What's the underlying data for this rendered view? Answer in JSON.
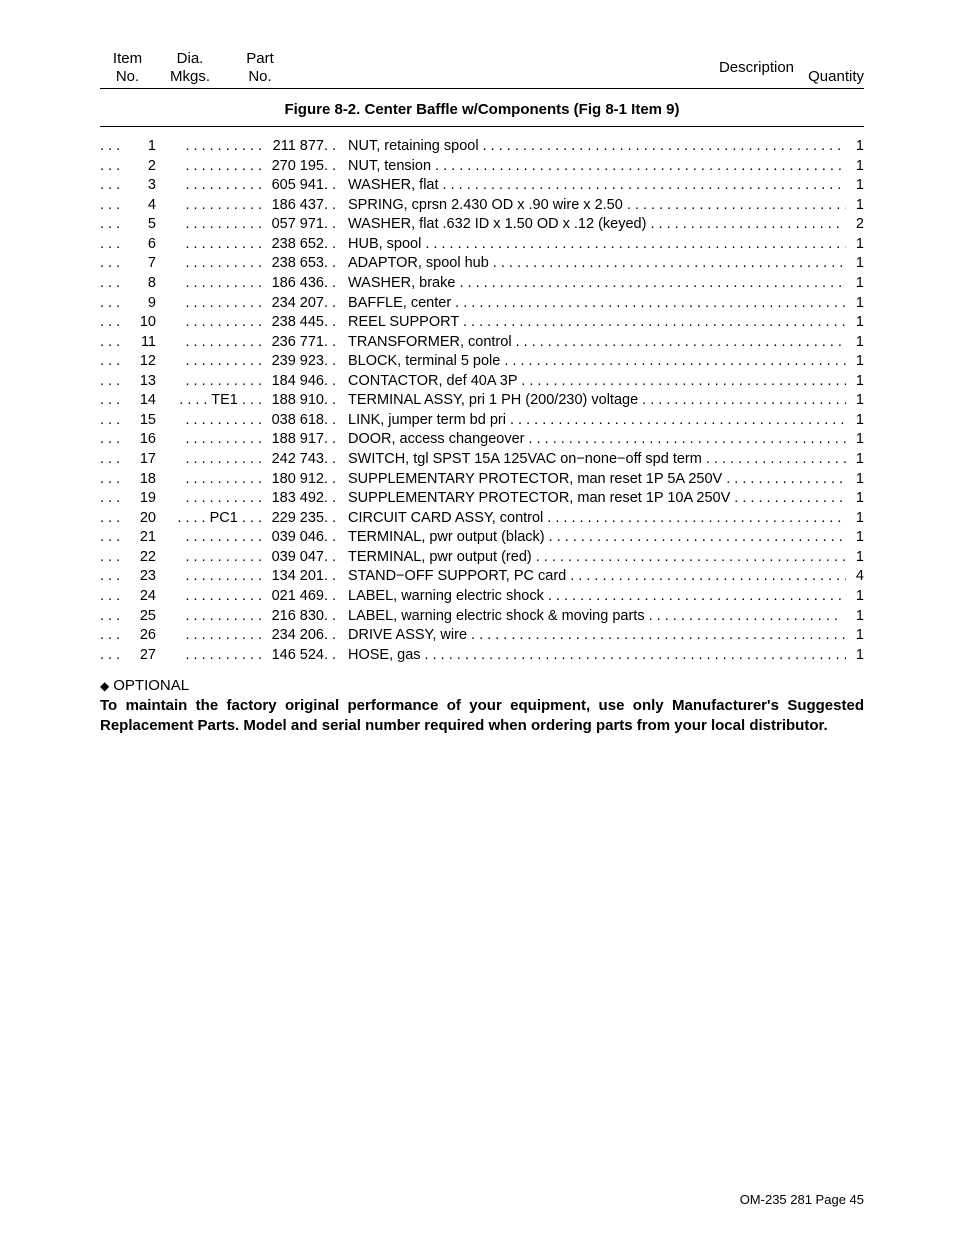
{
  "header": {
    "item1": "Item",
    "item2": "No.",
    "dia1": "Dia.",
    "dia2": "Mkgs.",
    "part1": "Part",
    "part2": "No.",
    "desc": "Description",
    "qty": "Quantity"
  },
  "figure_title": "Figure 8-2. Center Baffle w/Components (Fig 8-1 Item 9)",
  "rows": [
    {
      "item": "1",
      "dia": "",
      "part": "211 877",
      "desc": "NUT, retaining spool",
      "qty": "1"
    },
    {
      "item": "2",
      "dia": "",
      "part": "270 195",
      "desc": "NUT, tension",
      "qty": "1"
    },
    {
      "item": "3",
      "dia": "",
      "part": "605 941",
      "desc": "WASHER, flat",
      "qty": "1"
    },
    {
      "item": "4",
      "dia": "",
      "part": "186 437",
      "desc": "SPRING, cprsn 2.430 OD x .90 wire x 2.50",
      "qty": "1"
    },
    {
      "item": "5",
      "dia": "",
      "part": "057 971",
      "desc": "WASHER, flat .632 ID x 1.50 OD x .12 (keyed)",
      "qty": "2"
    },
    {
      "item": "6",
      "dia": "",
      "part": "238 652",
      "desc": "HUB, spool",
      "qty": "1"
    },
    {
      "item": "7",
      "dia": "",
      "part": "238 653",
      "desc": "ADAPTOR, spool hub",
      "qty": "1"
    },
    {
      "item": "8",
      "dia": "",
      "part": "186 436",
      "desc": "WASHER, brake",
      "qty": "1"
    },
    {
      "item": "9",
      "dia": "",
      "part": "234 207",
      "desc": "BAFFLE, center",
      "qty": "1"
    },
    {
      "item": "10",
      "dia": "",
      "part": "238 445",
      "desc": "REEL SUPPORT",
      "qty": "1"
    },
    {
      "item": "11",
      "dia": "",
      "part": "236 771",
      "desc": "TRANSFORMER, control",
      "qty": "1"
    },
    {
      "item": "12",
      "dia": "",
      "part": "239 923",
      "desc": "BLOCK, terminal 5 pole",
      "qty": "1"
    },
    {
      "item": "13",
      "dia": "",
      "part": "184 946",
      "desc": "CONTACTOR, def 40A 3P",
      "qty": "1"
    },
    {
      "item": "14",
      "dia": "TE1",
      "part": "188 910",
      "desc": "TERMINAL ASSY, pri 1 PH (200/230) voltage",
      "qty": "1"
    },
    {
      "item": "15",
      "dia": "",
      "part": "038 618",
      "desc": "LINK, jumper term bd pri",
      "qty": "1"
    },
    {
      "item": "16",
      "dia": "",
      "part": "188 917",
      "desc": "DOOR, access changeover",
      "qty": "1"
    },
    {
      "item": "17",
      "dia": "",
      "part": "242 743",
      "desc": "SWITCH, tgl SPST 15A 125VAC on−none−off spd term",
      "qty": "1"
    },
    {
      "item": "18",
      "dia": "",
      "part": "180 912",
      "desc": "SUPPLEMENTARY PROTECTOR, man reset 1P 5A 250V",
      "qty": "1"
    },
    {
      "item": "19",
      "dia": "",
      "part": "183 492",
      "desc": "SUPPLEMENTARY PROTECTOR, man reset 1P 10A 250V",
      "qty": "1"
    },
    {
      "item": "20",
      "dia": "PC1",
      "part": "229 235",
      "desc": "CIRCUIT CARD ASSY, control",
      "qty": "1"
    },
    {
      "item": "21",
      "dia": "",
      "part": "039 046",
      "desc": "TERMINAL, pwr output (black)",
      "qty": "1"
    },
    {
      "item": "22",
      "dia": "",
      "part": "039 047",
      "desc": "TERMINAL, pwr output (red)",
      "qty": "1"
    },
    {
      "item": "23",
      "dia": "",
      "part": "134 201",
      "desc": "STAND−OFF SUPPORT, PC card",
      "qty": "4"
    },
    {
      "item": "24",
      "dia": "",
      "part": "021 469",
      "desc": "LABEL, warning electric shock",
      "qty": "1"
    },
    {
      "item": "25",
      "dia": "",
      "part": "216 830",
      "desc": "LABEL, warning electric shock & moving parts",
      "qty": "1"
    },
    {
      "item": "26",
      "dia": "",
      "part": "234 206",
      "desc": "DRIVE ASSY, wire",
      "qty": "1"
    },
    {
      "item": "27",
      "dia": "",
      "part": "146 524",
      "desc": "HOSE, gas",
      "qty": "1"
    }
  ],
  "footer": {
    "optional": "OPTIONAL",
    "note": "To maintain the factory original performance of your equipment, use only Manufacturer's Suggested Replacement Parts. Model and serial number required when ordering parts from your local distributor."
  },
  "page": "OM-235 281 Page 45"
}
